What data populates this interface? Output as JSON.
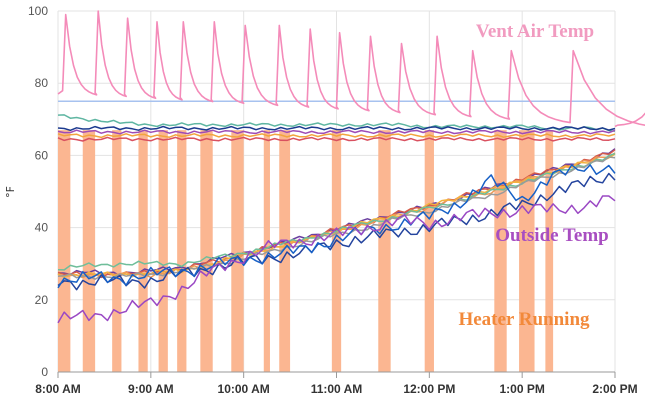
{
  "chart_data": {
    "type": "line",
    "ylabel": "°F",
    "ylim": [
      0,
      100
    ],
    "yticks": [
      0,
      20,
      40,
      60,
      80,
      100
    ],
    "xlim": [
      "8:00 AM",
      "2:00 PM"
    ],
    "xticks": [
      "8:00 AM",
      "9:00 AM",
      "10:00 AM",
      "11:00 AM",
      "12:00 PM",
      "1:00 PM",
      "2:00 PM"
    ],
    "grid": true,
    "reference_line": {
      "value": 75,
      "color": "#a7c2ef"
    },
    "annotations": [
      {
        "text": "Vent Air Temp",
        "color": "#f19bc0"
      },
      {
        "text": "Outside Temp",
        "color": "#a84ec1"
      },
      {
        "text": "Heater Running",
        "color": "#f2893a"
      }
    ],
    "heater_running": {
      "color": "#fbb691",
      "intervals_min": [
        [
          0,
          8
        ],
        [
          16,
          24
        ],
        [
          35,
          41
        ],
        [
          52,
          58
        ],
        [
          65,
          71
        ],
        [
          77,
          83
        ],
        [
          92,
          100
        ],
        [
          112,
          120
        ],
        [
          133,
          137
        ],
        [
          143,
          150
        ],
        [
          177,
          183
        ],
        [
          207,
          215
        ],
        [
          237,
          243
        ],
        [
          282,
          290
        ],
        [
          298,
          308
        ],
        [
          315,
          320
        ],
        [
          390,
          396
        ],
        [
          425,
          430
        ]
      ]
    },
    "x_minutes": [
      0,
      20,
      40,
      60,
      80,
      100,
      120,
      140,
      160,
      180,
      200,
      220,
      240,
      260,
      280,
      300,
      320,
      340,
      360
    ],
    "series": [
      {
        "name": "Vent Air Temp",
        "color": "#f48bb9",
        "kind": "spikes",
        "baseline_start": 77,
        "baseline_end": 68,
        "peaks": [
          [
            5,
            99
          ],
          [
            26,
            100
          ],
          [
            45,
            98
          ],
          [
            64,
            97
          ],
          [
            81,
            97
          ],
          [
            101,
            97
          ],
          [
            121,
            96
          ],
          [
            143,
            96
          ],
          [
            163,
            95
          ],
          [
            182,
            94
          ],
          [
            202,
            93
          ],
          [
            222,
            91
          ],
          [
            245,
            93
          ],
          [
            268,
            89
          ],
          [
            293,
            89
          ],
          [
            333,
            89
          ],
          [
            393,
            90
          ]
        ]
      },
      {
        "color": "#6a3fa0",
        "values": [
          27.5,
          27.5,
          27.5,
          28,
          29,
          31,
          33,
          35,
          37.5,
          39.5,
          42,
          44,
          46,
          48.5,
          51,
          53.5,
          56,
          58.5,
          61.5
        ]
      },
      {
        "color": "#d65b4a",
        "values": [
          27,
          27,
          27,
          27.5,
          28.5,
          30.5,
          32.5,
          35,
          37,
          39.5,
          41.5,
          44,
          46,
          48.5,
          51,
          53.5,
          56,
          58.5,
          61
        ]
      },
      {
        "color": "#f09a55",
        "values": [
          26.5,
          27,
          27,
          27,
          28,
          30,
          32,
          34.5,
          36.5,
          39,
          41,
          43.5,
          45.5,
          48,
          50,
          53,
          55.5,
          58,
          60.5
        ]
      },
      {
        "color": "#f3b33f",
        "values": [
          27,
          27,
          27,
          27.5,
          28,
          30,
          32.5,
          34.5,
          36.5,
          39,
          41.5,
          43.5,
          46,
          48.5,
          50.5,
          53,
          55.5,
          58,
          60
        ]
      },
      {
        "color": "#6fbe9a",
        "values": [
          28.5,
          29.5,
          30,
          30,
          30,
          31.5,
          33,
          35,
          37,
          39,
          41.5,
          43,
          45.5,
          47.5,
          50,
          52.5,
          55,
          57.5,
          60
        ]
      },
      {
        "color": "#9a9a9a",
        "values": [
          26.5,
          26.5,
          26.5,
          27,
          28,
          29.5,
          31.5,
          33.5,
          36,
          38,
          40,
          42.5,
          44.5,
          47,
          49,
          52,
          54.5,
          57,
          59.5
        ]
      },
      {
        "color": "#24449e",
        "values": [
          25,
          25,
          25,
          25.5,
          27,
          29,
          30.5,
          32,
          33,
          36,
          37,
          39,
          40,
          42,
          44,
          46,
          50,
          52,
          55
        ]
      },
      {
        "color": "#1760c6",
        "values": [
          25.5,
          26,
          26,
          27,
          28,
          29.5,
          31,
          32.5,
          34,
          37,
          39,
          41,
          43,
          47,
          53,
          48,
          54,
          57,
          56
        ]
      },
      {
        "color": "#9a48c4",
        "values": [
          14.5,
          15.5,
          17,
          19,
          23,
          28,
          32,
          35,
          36.5,
          38,
          40,
          42,
          41,
          43,
          44,
          45,
          45,
          46,
          48
        ]
      },
      {
        "color": "#5fb6a2",
        "values": [
          71,
          70,
          69,
          68.5,
          68.5,
          68.5,
          68.5,
          68.5,
          68.5,
          68.5,
          68.5,
          68.5,
          68,
          68,
          68,
          68,
          67.5,
          67.5,
          67
        ]
      },
      {
        "color": "#1c3a8f",
        "values": [
          67.5,
          67.5,
          67.5,
          67.5,
          67.5,
          67.5,
          67.5,
          67.5,
          67.5,
          67.5,
          67.5,
          67.5,
          67.5,
          67.5,
          67.5,
          67.5,
          67.5,
          67.5,
          67.5
        ]
      },
      {
        "color": "#9e4cb6",
        "values": [
          66.5,
          66.5,
          66.5,
          66.5,
          66.5,
          66.5,
          66.5,
          66.5,
          66.5,
          66.5,
          66.5,
          66.5,
          66.5,
          66.5,
          66.5,
          66.5,
          66.5,
          66.5,
          66.5
        ]
      },
      {
        "color": "#f2a43e",
        "values": [
          65.5,
          65.5,
          65.5,
          65.5,
          65.5,
          65.5,
          65.5,
          65.5,
          65.5,
          65.5,
          65.5,
          65.5,
          65.5,
          65.5,
          65.5,
          65.5,
          65.5,
          65.5,
          65.5
        ]
      },
      {
        "color": "#d9505f",
        "values": [
          64.5,
          64.5,
          64.5,
          64.5,
          64.5,
          64.5,
          64.5,
          64.5,
          64.5,
          64.5,
          64.5,
          64.5,
          64.5,
          64.5,
          64.5,
          64.5,
          64.5,
          64.5,
          64.5
        ]
      }
    ]
  }
}
